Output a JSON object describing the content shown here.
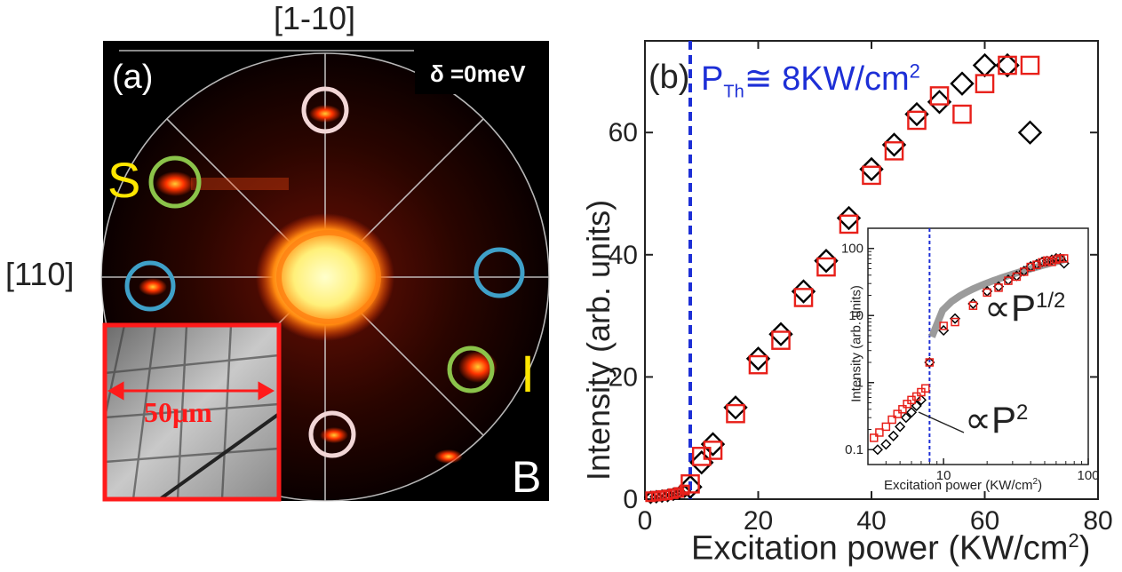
{
  "panel_a": {
    "label": "(a)",
    "top_direction": "[1-10]",
    "left_direction": "[110]",
    "detuning_label": "δ =0meV",
    "spot_letters": [
      "S",
      "I",
      "B"
    ],
    "scale_bar_label": "50μm",
    "colors": {
      "background": "#000000",
      "spot": "#ff3300",
      "center": "#ffee88",
      "s_letter": "#ffe600",
      "circle_pink": "#f2d6d6",
      "circle_green": "#8bc34a",
      "circle_blue": "#3fa0c8",
      "inset_frame": "#ff1a1a"
    }
  },
  "panel_b": {
    "label": "(b)",
    "threshold_label": "P",
    "threshold_sub": "Th",
    "threshold_rest": "≅ 8KW/cm",
    "threshold_sup": "2",
    "threshold_value": 8,
    "xlabel": "Excitation power (KW/cm",
    "xlabel_sup": "2",
    "xlabel_end": ")",
    "ylabel": "Intensity (arb. units)",
    "colors": {
      "series_a": "#000000",
      "series_b": "#e8201a",
      "threshold": "#1d2fd6"
    }
  },
  "chart_data": [
    {
      "type": "scatter",
      "name": "main",
      "xlim": [
        0,
        80
      ],
      "ylim": [
        0,
        75
      ],
      "xticks": [
        0,
        20,
        40,
        60,
        80
      ],
      "yticks": [
        0,
        20,
        40,
        60
      ],
      "series": [
        {
          "marker": "diamond",
          "points": [
            [
              1,
              0.3
            ],
            [
              2,
              0.4
            ],
            [
              3,
              0.5
            ],
            [
              4,
              0.6
            ],
            [
              5,
              0.8
            ],
            [
              6,
              1.0
            ],
            [
              7,
              1.3
            ],
            [
              8,
              2.0
            ],
            [
              10,
              6
            ],
            [
              12,
              9
            ],
            [
              16,
              15
            ],
            [
              20,
              23
            ],
            [
              24,
              27
            ],
            [
              28,
              34
            ],
            [
              32,
              39
            ],
            [
              36,
              46
            ],
            [
              40,
              54
            ],
            [
              44,
              58
            ],
            [
              48,
              63
            ],
            [
              52,
              65
            ],
            [
              56,
              68
            ],
            [
              60,
              71
            ],
            [
              64,
              71
            ],
            [
              68,
              60
            ]
          ]
        },
        {
          "marker": "square",
          "points": [
            [
              1,
              0.4
            ],
            [
              2,
              0.5
            ],
            [
              3,
              0.6
            ],
            [
              4,
              0.7
            ],
            [
              5,
              0.9
            ],
            [
              6,
              1.1
            ],
            [
              7,
              1.5
            ],
            [
              8,
              2.5
            ],
            [
              10,
              7
            ],
            [
              12,
              8
            ],
            [
              16,
              14
            ],
            [
              20,
              22
            ],
            [
              24,
              26
            ],
            [
              28,
              33
            ],
            [
              32,
              38
            ],
            [
              36,
              45
            ],
            [
              40,
              53
            ],
            [
              44,
              57
            ],
            [
              48,
              62
            ],
            [
              52,
              66
            ],
            [
              56,
              63
            ],
            [
              60,
              68
            ],
            [
              64,
              71
            ],
            [
              68,
              71
            ]
          ]
        }
      ]
    },
    {
      "type": "scatter",
      "name": "inset",
      "xscale": "log",
      "yscale": "log",
      "xlim": [
        3,
        100
      ],
      "ylim": [
        0.06,
        200
      ],
      "xlabel": "Excitation power (KW/cm",
      "xlabel_sup": "2",
      "xlabel_end": ")",
      "ylabel": "Intensity (arb. units)",
      "xtick_labels": [
        "10",
        "100"
      ],
      "ytick_labels": [
        "0.1",
        "1",
        "10",
        "100"
      ],
      "annotation_p2": "∝P",
      "annotation_p2_sup": "2",
      "annotation_p12": "∝P",
      "annotation_p12_sup": "1/2",
      "series": [
        {
          "marker": "diamond",
          "points": [
            [
              3.5,
              0.1
            ],
            [
              4,
              0.12
            ],
            [
              4.5,
              0.16
            ],
            [
              5,
              0.22
            ],
            [
              5.5,
              0.3
            ],
            [
              6,
              0.36
            ],
            [
              6.5,
              0.45
            ],
            [
              7,
              0.55
            ],
            [
              8,
              2.0
            ],
            [
              10,
              6
            ],
            [
              12,
              9
            ],
            [
              16,
              15
            ],
            [
              20,
              23
            ],
            [
              24,
              27
            ],
            [
              28,
              34
            ],
            [
              32,
              39
            ],
            [
              36,
              46
            ],
            [
              40,
              54
            ],
            [
              44,
              58
            ],
            [
              48,
              63
            ],
            [
              52,
              65
            ],
            [
              56,
              68
            ],
            [
              60,
              71
            ],
            [
              64,
              71
            ],
            [
              68,
              60
            ]
          ]
        },
        {
          "marker": "square",
          "points": [
            [
              3.3,
              0.15
            ],
            [
              3.6,
              0.18
            ],
            [
              4,
              0.22
            ],
            [
              4.4,
              0.28
            ],
            [
              4.8,
              0.34
            ],
            [
              5.2,
              0.4
            ],
            [
              5.6,
              0.48
            ],
            [
              6,
              0.55
            ],
            [
              6.5,
              0.62
            ],
            [
              7,
              0.72
            ],
            [
              7.5,
              0.82
            ],
            [
              8,
              2.0
            ],
            [
              10,
              7
            ],
            [
              12,
              8
            ],
            [
              16,
              14
            ],
            [
              20,
              22
            ],
            [
              24,
              26
            ],
            [
              28,
              33
            ],
            [
              32,
              38
            ],
            [
              36,
              45
            ],
            [
              40,
              53
            ],
            [
              44,
              57
            ],
            [
              48,
              62
            ],
            [
              52,
              66
            ],
            [
              56,
              63
            ],
            [
              60,
              68
            ],
            [
              64,
              71
            ],
            [
              68,
              71
            ]
          ]
        }
      ]
    }
  ]
}
